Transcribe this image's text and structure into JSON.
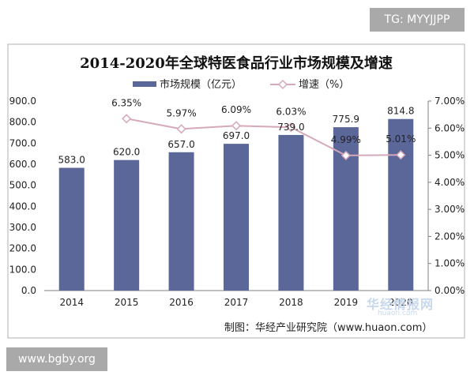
{
  "watermarks": {
    "top_right": "TG: MYYJJPP",
    "bottom_left": "www.bgby.org",
    "logo": "华经情报网",
    "logo_url": "huaon.com"
  },
  "source": "制图：华经产业研究院（www.huaon.com）",
  "colors": {
    "bar": "#5b6699",
    "line": "#d5a9ba",
    "marker": "#ffffff",
    "axis": "#808080",
    "frame": "#b0b0b0"
  },
  "chart_data": {
    "type": "bar",
    "title": "2014-2020年全球特医食品行业市场规模及增速",
    "categories": [
      "2014",
      "2015",
      "2016",
      "2017",
      "2018",
      "2019",
      "2020"
    ],
    "series": [
      {
        "name": "市场规模（亿元）",
        "type": "bar",
        "axis": "left",
        "values": [
          583.0,
          620.0,
          657.0,
          697.0,
          739.0,
          775.9,
          814.8
        ],
        "labels": [
          "583.0",
          "620.0",
          "657.0",
          "697.0",
          "739.0",
          "775.9",
          "814.8"
        ]
      },
      {
        "name": "增速（%）",
        "type": "line",
        "axis": "right",
        "values": [
          null,
          6.35,
          5.97,
          6.09,
          6.03,
          4.99,
          5.01
        ],
        "labels": [
          "",
          "6.35%",
          "5.97%",
          "6.09%",
          "6.03%",
          "4.99%",
          "5.01%"
        ]
      }
    ],
    "ylim": [
      0,
      900
    ],
    "y_ticks": [
      "0.0",
      "100.0",
      "200.0",
      "300.0",
      "400.0",
      "500.0",
      "600.0",
      "700.0",
      "800.0",
      "900.0"
    ],
    "y2lim": [
      0,
      7
    ],
    "y2_ticks": [
      "0.00%",
      "1.00%",
      "2.00%",
      "3.00%",
      "4.00%",
      "5.00%",
      "6.00%",
      "7.00%"
    ],
    "legend": "top",
    "grid": false
  }
}
